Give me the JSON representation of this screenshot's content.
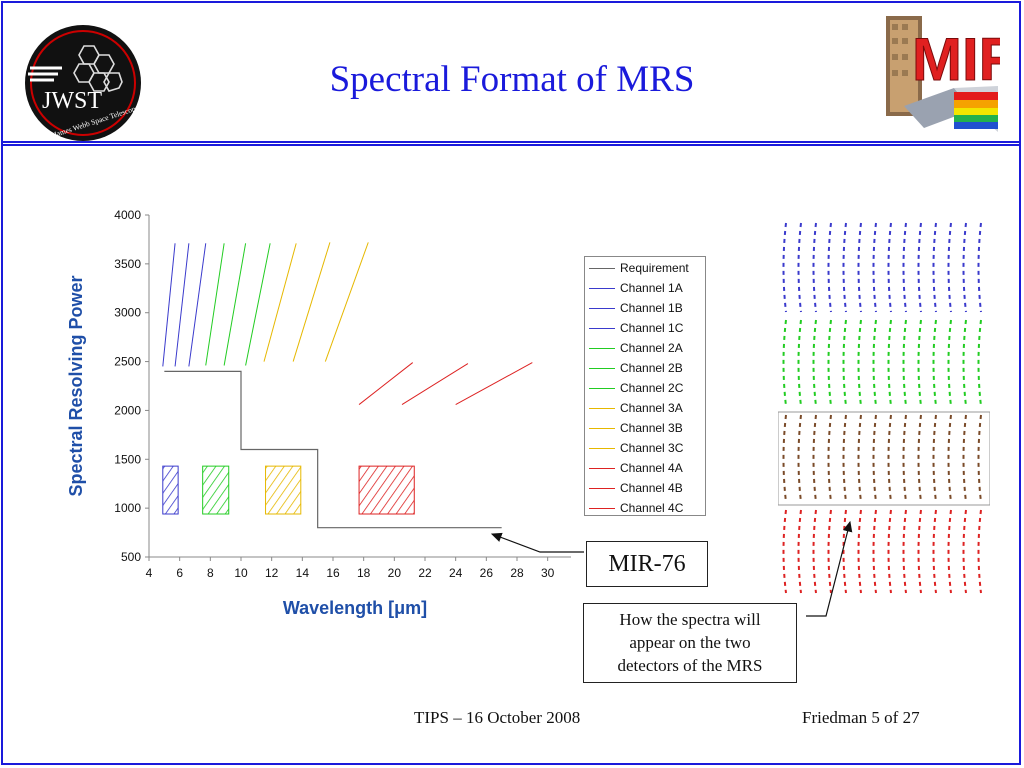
{
  "slide": {
    "title": "Spectral Format of MRS",
    "footer_left": "TIPS – 16 October 2008",
    "footer_right": "Friedman 5 of 27",
    "logo_left": {
      "icon": "jwst-logo",
      "text": "JWST",
      "subtext": "James Webb Space Telescope"
    },
    "logo_right": {
      "icon": "miri-logo",
      "text": "MIRI"
    },
    "colors": {
      "accent": "#1a1adb",
      "blue": "#3a3acc",
      "green": "#22cc22",
      "yellow": "#e6b800",
      "red": "#dd2222",
      "brown": "#7a4a28"
    }
  },
  "chart_data": {
    "type": "line",
    "xlabel": "Wavelength [μm]",
    "ylabel": "Spectral Resolving Power",
    "xlim": [
      4,
      31
    ],
    "ylim": [
      500,
      4000
    ],
    "xticks": [
      4,
      6,
      8,
      10,
      12,
      14,
      16,
      18,
      20,
      22,
      24,
      26,
      28,
      30
    ],
    "yticks": [
      500,
      1000,
      1500,
      2000,
      2500,
      3000,
      3500,
      4000
    ],
    "grid": false,
    "legend_position": "right",
    "requirement": {
      "name": "Requirement",
      "color": "#666666",
      "x": [
        5,
        10,
        10,
        15,
        15,
        27
      ],
      "y": [
        2400,
        2400,
        1600,
        1600,
        800,
        800
      ]
    },
    "series": [
      {
        "name": "Channel 1A",
        "color": "#3a3acc",
        "x": [
          4.9,
          5.7
        ],
        "y": [
          2450,
          3710
        ]
      },
      {
        "name": "Channel 1B",
        "color": "#3a3acc",
        "x": [
          5.7,
          6.6
        ],
        "y": [
          2450,
          3710
        ]
      },
      {
        "name": "Channel 1C",
        "color": "#3a3acc",
        "x": [
          6.6,
          7.7
        ],
        "y": [
          2450,
          3710
        ]
      },
      {
        "name": "Channel 2A",
        "color": "#22cc22",
        "x": [
          7.7,
          8.9
        ],
        "y": [
          2460,
          3710
        ]
      },
      {
        "name": "Channel 2B",
        "color": "#22cc22",
        "x": [
          8.9,
          10.3
        ],
        "y": [
          2460,
          3710
        ]
      },
      {
        "name": "Channel 2C",
        "color": "#22cc22",
        "x": [
          10.3,
          11.9
        ],
        "y": [
          2460,
          3710
        ]
      },
      {
        "name": "Channel 3A",
        "color": "#e6b800",
        "x": [
          11.5,
          13.6
        ],
        "y": [
          2500,
          3710
        ]
      },
      {
        "name": "Channel 3B",
        "color": "#e6b800",
        "x": [
          13.4,
          15.8
        ],
        "y": [
          2500,
          3720
        ]
      },
      {
        "name": "Channel 3C",
        "color": "#e6b800",
        "x": [
          15.5,
          18.3
        ],
        "y": [
          2500,
          3720
        ]
      },
      {
        "name": "Channel 4A",
        "color": "#dd2222",
        "x": [
          17.7,
          21.2
        ],
        "y": [
          2060,
          2490
        ]
      },
      {
        "name": "Channel 4B",
        "color": "#dd2222",
        "x": [
          20.5,
          24.8
        ],
        "y": [
          2060,
          2480
        ]
      },
      {
        "name": "Channel 4C",
        "color": "#dd2222",
        "x": [
          24,
          29
        ],
        "y": [
          2060,
          2490
        ]
      }
    ],
    "hatched_blocks": [
      {
        "color": "#3a3acc",
        "x": [
          4.9,
          5.9
        ],
        "y": [
          940,
          1430
        ]
      },
      {
        "color": "#22cc22",
        "x": [
          7.5,
          9.2
        ],
        "y": [
          940,
          1430
        ]
      },
      {
        "color": "#e6b800",
        "x": [
          11.6,
          13.9
        ],
        "y": [
          940,
          1430
        ]
      },
      {
        "color": "#dd2222",
        "x": [
          17.7,
          21.3
        ],
        "y": [
          940,
          1430
        ]
      }
    ]
  },
  "callouts": {
    "mir76": "MIR-76",
    "note_lines": [
      "How the spectra will",
      "appear on the two",
      "detectors of the MRS"
    ]
  },
  "detectors": {
    "panels": [
      {
        "color": "#3a3acc"
      },
      {
        "color": "#22cc22"
      },
      {
        "color": "#7a4a28"
      },
      {
        "color": "#dd2222"
      }
    ]
  }
}
